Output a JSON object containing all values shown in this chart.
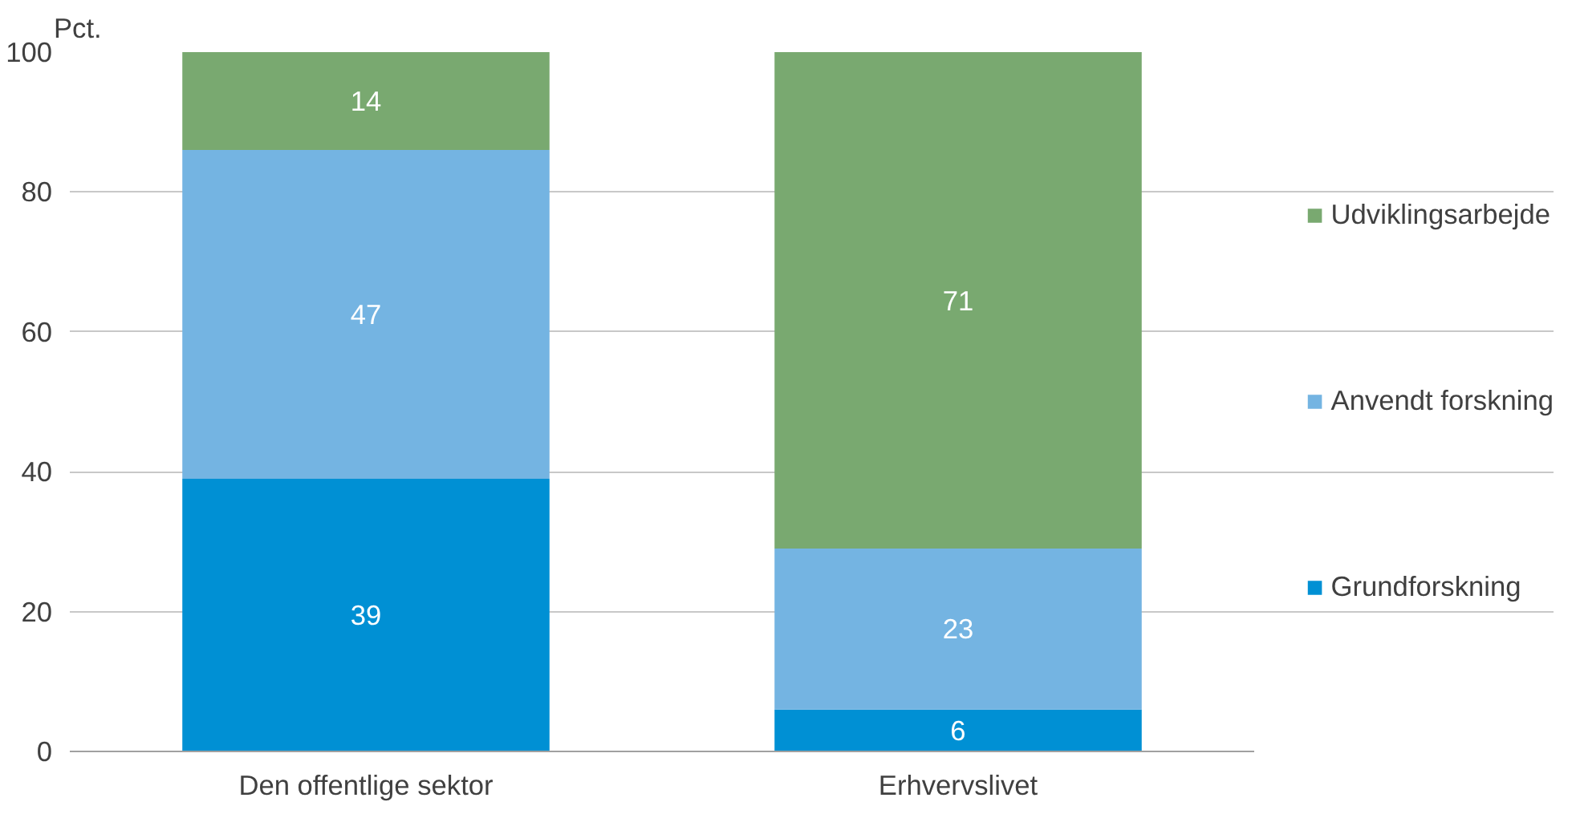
{
  "chart_data": {
    "type": "bar",
    "stacked": true,
    "ylabel": "Pct.",
    "categories": [
      "Den offentlige sektor",
      "Erhvervslivet"
    ],
    "series": [
      {
        "name": "Grundforskning",
        "color": "#0090d4",
        "values": [
          39,
          6
        ]
      },
      {
        "name": "Anvendt forskning",
        "color": "#74b4e2",
        "values": [
          47,
          23
        ]
      },
      {
        "name": "Udviklingsarbejde",
        "color": "#79a970",
        "values": [
          14,
          71
        ]
      }
    ],
    "ylim": [
      0,
      100
    ],
    "yticks": [
      0,
      20,
      40,
      60,
      80,
      100
    ],
    "grid": "y",
    "legend": "right",
    "data_labels": true
  }
}
